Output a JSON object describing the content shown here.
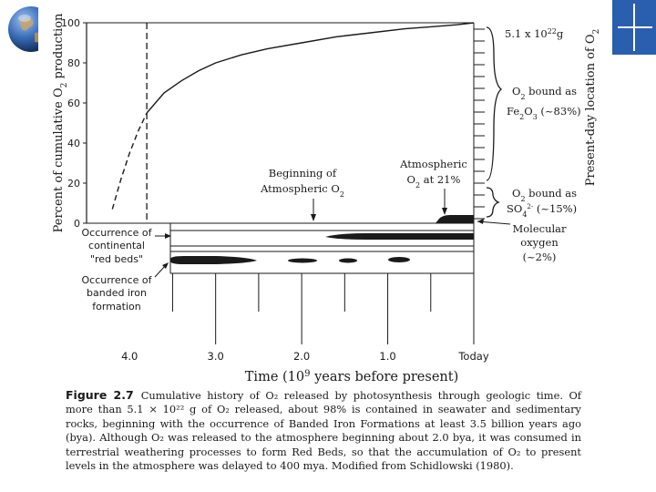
{
  "slide": {
    "globe_icon": "globe-icon",
    "corner_accent_color": "#2a5fb0"
  },
  "figure": {
    "y_axis_label_main": "Percent of cumulative O",
    "y_axis_label_sub": "2",
    "y_axis_label_end": " production",
    "right_axis_label_main": "Present-day location of O",
    "right_axis_label_sub": "2",
    "x_axis_title": "Time (10",
    "x_axis_title_sup": "9",
    "x_axis_title_end": " years before present)",
    "annotations": {
      "total": "5.1 x 10",
      "total_sup": "22",
      "total_unit": "g",
      "fe_line1": "O",
      "fe_line1_sub": "2",
      "fe_line1_end": " bound as",
      "fe_line2": "Fe",
      "fe_line2_sub": "2",
      "fe_line2_mid": "O",
      "fe_line2_sub2": "3",
      "fe_line2_end": " (~83%)",
      "so4_line1": "O",
      "so4_line1_sub": "2",
      "so4_line1_end": " bound as",
      "so4_line2": "SO",
      "so4_line2_sub": "4",
      "so4_line2_sup": "2-",
      "so4_line2_end": " (~15%)",
      "mol_line1": "Molecular",
      "mol_line2": "oxygen",
      "mol_line3": "(~2%)",
      "beginning_line1": "Beginning of",
      "beginning_line2": "Atmospheric O",
      "beginning_line2_sub": "2",
      "atmos_line1": "Atmospheric",
      "atmos_line2": "O",
      "atmos_line2_sub": "2",
      "atmos_line2_end": " at 21%",
      "red_beds_line1": "Occurrence of",
      "red_beds_line2": "continental",
      "red_beds_line3": "\"red beds\"",
      "bif_line1": "Occurrence of",
      "bif_line2": "banded iron",
      "bif_line3": "formation"
    }
  },
  "chart_data": {
    "type": "line",
    "title": "",
    "xlabel": "Time (10^9 years before present)",
    "ylabel": "Percent of cumulative O2 production",
    "xlim": [
      4.5,
      0
    ],
    "ylim": [
      0,
      100
    ],
    "x_ticks": [
      "4.0",
      "3.0",
      "2.0",
      "1.0",
      "Today"
    ],
    "x_tick_values": [
      4.0,
      3.0,
      2.0,
      1.0,
      0.0
    ],
    "y_ticks": [
      "0",
      "20",
      "40",
      "60",
      "80",
      "100"
    ],
    "y_tick_values": [
      0,
      20,
      40,
      60,
      80,
      100
    ],
    "series": [
      {
        "style": "dashed",
        "x": [
          4.2,
          4.1,
          4.0,
          3.9,
          3.8
        ],
        "y": [
          7,
          22,
          35,
          46,
          55
        ]
      },
      {
        "style": "solid",
        "x": [
          3.8,
          3.6,
          3.4,
          3.2,
          3.0,
          2.7,
          2.4,
          2.0,
          1.6,
          1.2,
          0.8,
          0.5,
          0.2,
          0.0
        ],
        "y": [
          55,
          65,
          71,
          76,
          80,
          84,
          87,
          90,
          93,
          95,
          97,
          98,
          99,
          100
        ]
      }
    ],
    "vertical_marker_x": 3.8
  },
  "caption": {
    "label": "Figure 2.7",
    "text": "Cumulative history of O₂ released by photosynthesis through geologic time. Of more than 5.1 × 10²² g of O₂ released, about 98% is contained in seawater and sedimentary rocks, beginning with the occurrence of Banded Iron Formations at least 3.5 billion years ago (bya). Although O₂ was released to the atmosphere beginning about 2.0 bya, it was consumed in terrestrial weathering processes to form Red Beds, so that the accumulation of O₂ to present levels in the atmosphere was delayed to 400 mya. Modified from Schidlowski (1980)."
  }
}
